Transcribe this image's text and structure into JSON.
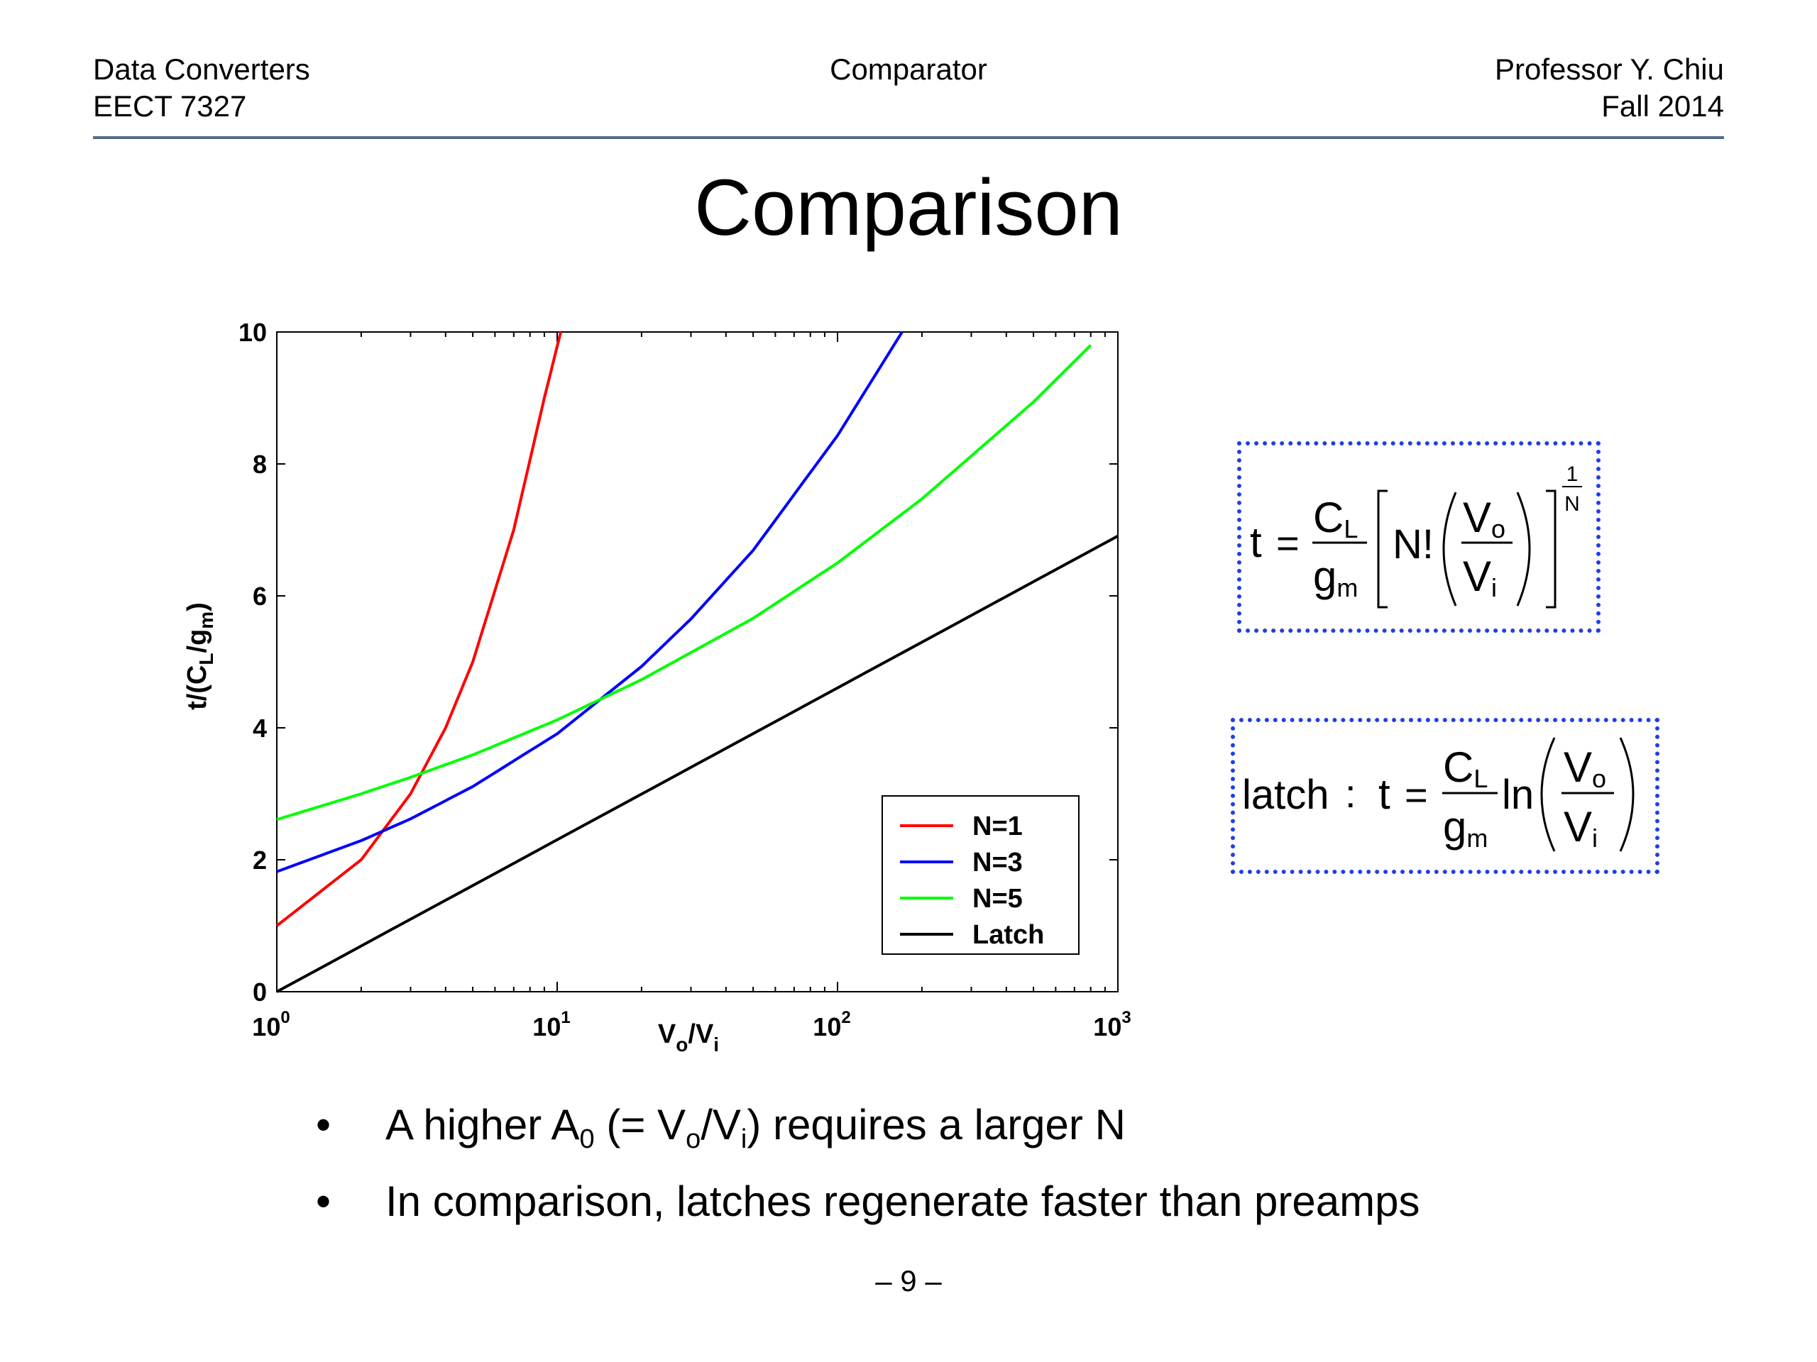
{
  "header": {
    "left_line1": "Data Converters",
    "left_line2": "EECT 7327",
    "center": "Comparator",
    "right_line1": "Professor Y. Chiu",
    "right_line2": "Fall 2014"
  },
  "slide_title": "Comparison",
  "chart_data": {
    "type": "line",
    "xscale": "log",
    "xlim": [
      1,
      1000
    ],
    "ylim": [
      0,
      10
    ],
    "x_ticks": [
      {
        "base": "10",
        "exp": "0"
      },
      {
        "base": "10",
        "exp": "1"
      },
      {
        "base": "10",
        "exp": "2"
      },
      {
        "base": "10",
        "exp": "3"
      }
    ],
    "y_ticks": [
      "0",
      "2",
      "4",
      "6",
      "8",
      "10"
    ],
    "xlabel": {
      "main": "V",
      "sub1": "o",
      "mid": "/V",
      "sub2": "i"
    },
    "ylabel": {
      "p1": "t/(C",
      "s1": "L",
      "p2": "/g",
      "s2": "m",
      "p3": ")"
    },
    "grid": false,
    "legend_position": "bottom-right",
    "series": [
      {
        "name": "N=1",
        "color": "#ff0000",
        "x": [
          1,
          2,
          3,
          4,
          5,
          7,
          9,
          10.3
        ],
        "y": [
          1.0,
          2.0,
          3.0,
          4.0,
          5.0,
          7.0,
          9.0,
          10.0
        ]
      },
      {
        "name": "N=3",
        "color": "#0000ff",
        "x": [
          1,
          2,
          3,
          5,
          10,
          20,
          30,
          50,
          100,
          170
        ],
        "y": [
          1.82,
          2.29,
          2.62,
          3.11,
          3.91,
          4.93,
          5.65,
          6.69,
          8.43,
          10.0
        ]
      },
      {
        "name": "N=5",
        "color": "#00ff00",
        "x": [
          1,
          2,
          3,
          5,
          10,
          20,
          50,
          100,
          200,
          500,
          800
        ],
        "y": [
          2.61,
          3.0,
          3.25,
          3.59,
          4.12,
          4.73,
          5.66,
          6.5,
          7.47,
          8.94,
          9.8
        ]
      },
      {
        "name": "Latch",
        "color": "#000000",
        "x": [
          1,
          10,
          100,
          1000
        ],
        "y": [
          0,
          2.303,
          4.605,
          6.908
        ]
      }
    ]
  },
  "equations": {
    "eq1": {
      "t": "t",
      "eq": "=",
      "CL_C": "C",
      "CL_sub": "L",
      "gm_g": "g",
      "gm_sub": "m",
      "nfact": "N!",
      "Vo": "V",
      "Vo_sub": "o",
      "Vi": "V",
      "Vi_sub": "i",
      "exp_num": "1",
      "exp_den": "N"
    },
    "eq2": {
      "latch": "latch",
      "colon": ":",
      "t": "t",
      "eq": "=",
      "CL_C": "C",
      "CL_sub": "L",
      "gm_g": "g",
      "gm_sub": "m",
      "ln": "ln",
      "Vo": "V",
      "Vo_sub": "o",
      "Vi": "V",
      "Vi_sub": "i"
    }
  },
  "bullets": {
    "symbol": "•",
    "b1": {
      "t1": "A higher A",
      "s1": "0",
      "t2": " (= V",
      "s2": "o",
      "t3": "/V",
      "s3": "i",
      "t4": ") requires a larger N"
    },
    "b2": "In comparison, latches regenerate faster than preamps"
  },
  "page_number": "– 9 –"
}
